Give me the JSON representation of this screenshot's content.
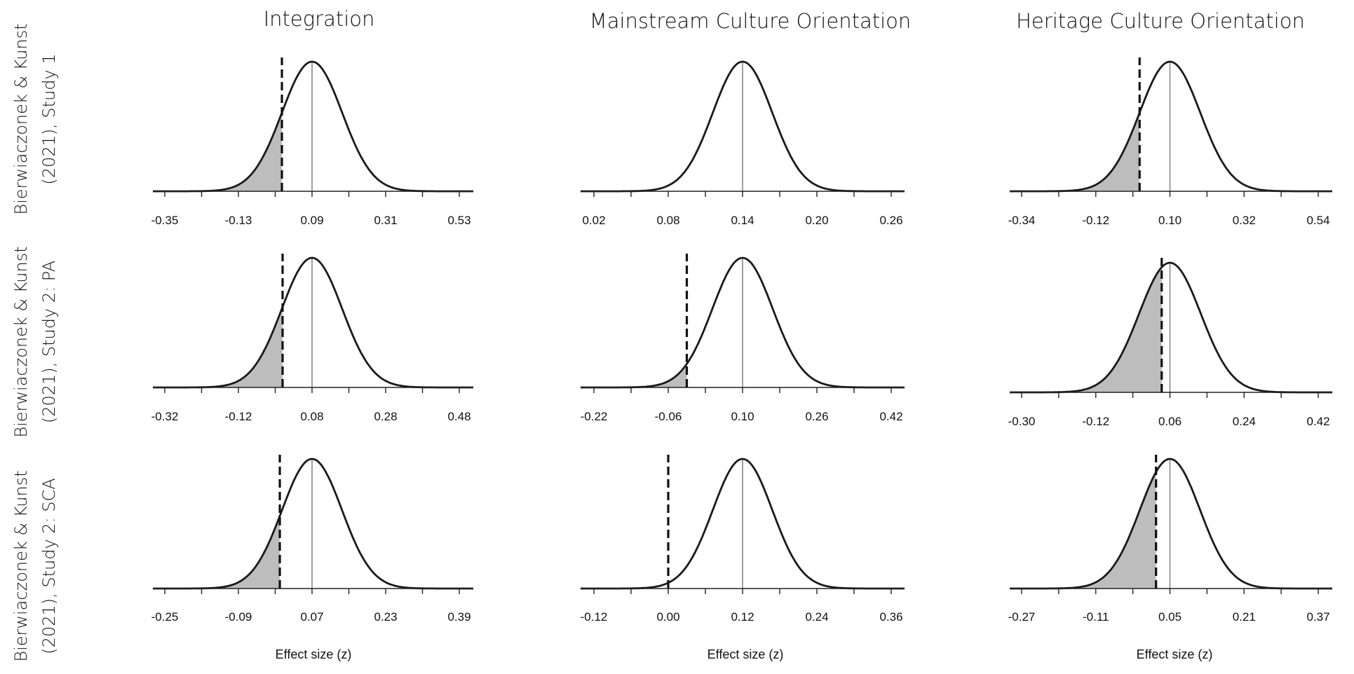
{
  "chart_data": [
    {
      "type": "area",
      "row": 0,
      "col": 0,
      "title": "Integration",
      "row_label_line1": "Bierwiaczonek & Kunst",
      "row_label_line2": "(2021), Study 1",
      "xlabel": "",
      "x_ticks": [
        -0.35,
        -0.13,
        0.09,
        0.31,
        0.53
      ],
      "xlim": [
        -0.35,
        0.53
      ],
      "mean": 0.09,
      "sd": 0.09,
      "observed": 0.0,
      "shaded": true
    },
    {
      "type": "area",
      "row": 0,
      "col": 1,
      "title": "Mainstream Culture Orientation",
      "xlabel": "",
      "x_ticks": [
        0.02,
        0.08,
        0.14,
        0.2,
        0.26
      ],
      "xlim": [
        0.02,
        0.26
      ],
      "mean": 0.14,
      "sd": 0.024,
      "observed": null,
      "shaded": false
    },
    {
      "type": "area",
      "row": 0,
      "col": 2,
      "title": "Heritage Culture Orientation",
      "xlabel": "",
      "x_ticks": [
        -0.34,
        -0.12,
        0.1,
        0.32,
        0.54
      ],
      "xlim": [
        -0.34,
        0.54
      ],
      "mean": 0.1,
      "sd": 0.09,
      "observed": 0.01,
      "shaded": true
    },
    {
      "type": "area",
      "row": 1,
      "col": 0,
      "row_label_line1": "Bierwiaczonek & Kunst",
      "row_label_line2": "(2021), Study 2: PA",
      "xlabel": "",
      "x_ticks": [
        -0.32,
        -0.12,
        0.08,
        0.28,
        0.48
      ],
      "xlim": [
        -0.32,
        0.48
      ],
      "mean": 0.08,
      "sd": 0.082,
      "observed": 0.0,
      "shaded": true
    },
    {
      "type": "area",
      "row": 1,
      "col": 1,
      "xlabel": "",
      "x_ticks": [
        -0.22,
        -0.06,
        0.1,
        0.26,
        0.42
      ],
      "xlim": [
        -0.22,
        0.42
      ],
      "mean": 0.1,
      "sd": 0.065,
      "observed": -0.02,
      "shaded": true
    },
    {
      "type": "area",
      "row": 1,
      "col": 2,
      "xlabel": "",
      "x_ticks": [
        -0.3,
        -0.12,
        0.06,
        0.24,
        0.42
      ],
      "xlim": [
        -0.3,
        0.42
      ],
      "mean": 0.06,
      "sd": 0.075,
      "observed": 0.04,
      "shaded": true
    },
    {
      "type": "area",
      "row": 2,
      "col": 0,
      "row_label_line1": "Bierwiaczonek & Kunst",
      "row_label_line2": "(2021), Study 2: SCA",
      "xlabel": "Effect size (z)",
      "x_ticks": [
        -0.25,
        -0.09,
        0.07,
        0.23,
        0.39
      ],
      "xlim": [
        -0.25,
        0.39
      ],
      "mean": 0.07,
      "sd": 0.065,
      "observed": 0.0,
      "shaded": true
    },
    {
      "type": "area",
      "row": 2,
      "col": 1,
      "xlabel": "Effect size (z)",
      "x_ticks": [
        -0.12,
        0.0,
        0.12,
        0.24,
        0.36
      ],
      "xlim": [
        -0.12,
        0.36
      ],
      "mean": 0.12,
      "sd": 0.048,
      "observed": 0.0,
      "shaded": false
    },
    {
      "type": "area",
      "row": 2,
      "col": 2,
      "xlabel": "Effect size (z)",
      "x_ticks": [
        -0.27,
        -0.11,
        0.05,
        0.21,
        0.37
      ],
      "xlim": [
        -0.27,
        0.37
      ],
      "mean": 0.05,
      "sd": 0.065,
      "observed": 0.02,
      "shaded": true
    }
  ]
}
